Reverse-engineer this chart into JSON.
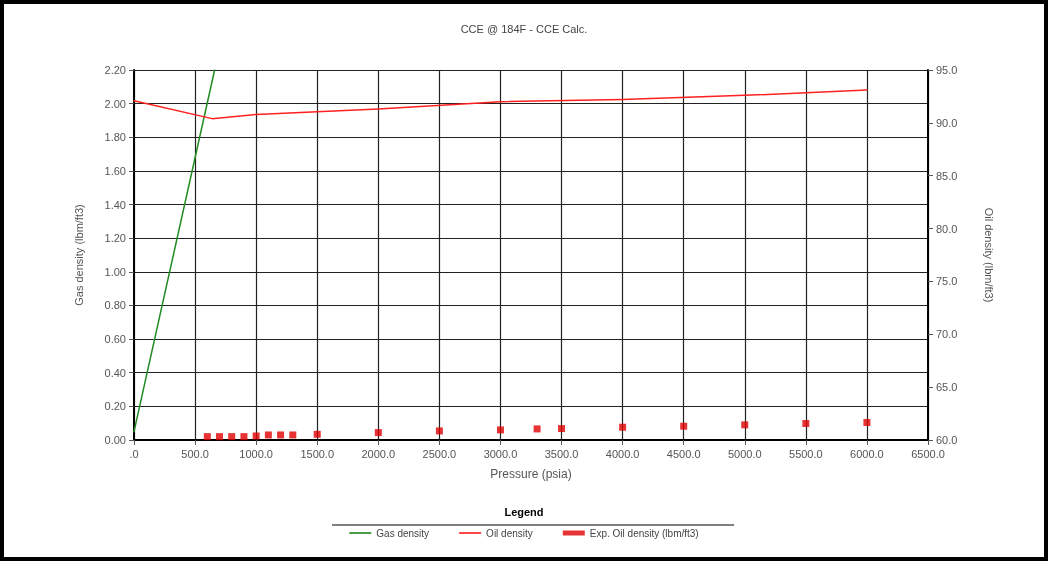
{
  "chart_data": {
    "type": "line",
    "title": "CCE @ 184F - CCE Calc.",
    "xlabel": "Pressure (psia)",
    "ylabel": "Gas density (lbm/ft3)",
    "y2label": "Oil density (lbm/ft3)",
    "legend_title": "Legend",
    "legend": "bottom",
    "grid": true,
    "xlim": [
      0,
      6500
    ],
    "xticks": [
      {
        "value": 0,
        "label": ".0"
      },
      {
        "value": 500,
        "label": "500.0"
      },
      {
        "value": 1000,
        "label": "1000.0"
      },
      {
        "value": 1500,
        "label": "1500.0"
      },
      {
        "value": 2000,
        "label": "2000.0"
      },
      {
        "value": 2500,
        "label": "2500.0"
      },
      {
        "value": 3000,
        "label": "3000.0"
      },
      {
        "value": 3500,
        "label": "3500.0"
      },
      {
        "value": 4000,
        "label": "4000.0"
      },
      {
        "value": 4500,
        "label": "4500.0"
      },
      {
        "value": 5000,
        "label": "5000.0"
      },
      {
        "value": 5500,
        "label": "5500.0"
      },
      {
        "value": 6000,
        "label": "6000.0"
      },
      {
        "value": 6500,
        "label": "6500.0"
      }
    ],
    "ylim": [
      0,
      2.2
    ],
    "yticks": [
      {
        "value": 0,
        "label": "0.00"
      },
      {
        "value": 0.2,
        "label": "0.20"
      },
      {
        "value": 0.4,
        "label": "0.40"
      },
      {
        "value": 0.6,
        "label": "0.60"
      },
      {
        "value": 0.8,
        "label": "0.80"
      },
      {
        "value": 1,
        "label": "1.00"
      },
      {
        "value": 1.2,
        "label": "1.20"
      },
      {
        "value": 1.4,
        "label": "1.40"
      },
      {
        "value": 1.6,
        "label": "1.60"
      },
      {
        "value": 1.8,
        "label": "1.80"
      },
      {
        "value": 2,
        "label": "2.00"
      },
      {
        "value": 2.2,
        "label": "2.20"
      }
    ],
    "y2lim": [
      60,
      95
    ],
    "y2ticks": [
      {
        "value": 60,
        "label": "60.0"
      },
      {
        "value": 65,
        "label": "65.0"
      },
      {
        "value": 70,
        "label": "70.0"
      },
      {
        "value": 75,
        "label": "75.0"
      },
      {
        "value": 80,
        "label": "80.0"
      },
      {
        "value": 85,
        "label": "85.0"
      },
      {
        "value": 90,
        "label": "90.0"
      },
      {
        "value": 95,
        "label": "95.0"
      }
    ],
    "series": [
      {
        "name": "Gas density",
        "color": "#228b22",
        "marker": "none",
        "x": [
          0,
          660
        ],
        "values": [
          0.05,
          2.2
        ]
      },
      {
        "name": "Oil density",
        "color": "#ff2020",
        "marker": "none",
        "axis": "y2",
        "x": [
          0,
          640,
          1000,
          2000,
          3000,
          4000,
          5000,
          6000
        ],
        "values": [
          92.1,
          90.4,
          90.8,
          91.3,
          92.0,
          92.2,
          92.6,
          93.1
        ]
      },
      {
        "name": "Exp. Oil density (lbm/ft3)",
        "type": "scatter",
        "color": "#e00000",
        "marker": "square",
        "x": [
          600,
          700,
          800,
          900,
          1000,
          1100,
          1200,
          1300,
          1500,
          2000,
          2500,
          3000,
          3300,
          3500,
          4000,
          4500,
          5000,
          5500,
          6000
        ],
        "values": [
          0.02,
          0.02,
          0.02,
          0.02,
          0.024,
          0.03,
          0.03,
          0.03,
          0.034,
          0.044,
          0.054,
          0.06,
          0.066,
          0.068,
          0.076,
          0.082,
          0.09,
          0.098,
          0.104
        ]
      }
    ]
  }
}
